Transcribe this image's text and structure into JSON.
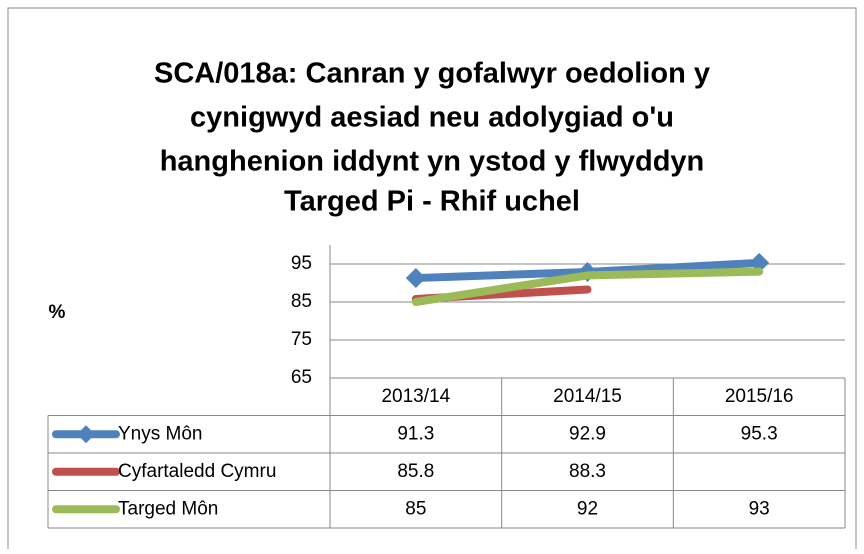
{
  "chart_data": {
    "type": "line",
    "title": [
      "SCA/018a: Canran y gofalwyr oedolion y",
      "cynigwyd aesiad neu adolygiad o'u",
      "hanghenion iddynt yn ystod y flwyddyn"
    ],
    "subtitle": "Targed Pi - Rhif uchel",
    "y_label": "%",
    "categories": [
      "2013/14",
      "2014/15",
      "2015/16"
    ],
    "series": [
      {
        "name": "Ynys Môn",
        "color": "#4f81bd",
        "marker": "diamond",
        "values": [
          91.3,
          92.9,
          95.3
        ]
      },
      {
        "name": "Cyfartaledd Cymru",
        "color": "#c0504d",
        "values": [
          85.8,
          88.3,
          null
        ]
      },
      {
        "name": "Targed Môn",
        "color": "#9bbb59",
        "values": [
          85,
          92,
          93
        ]
      }
    ],
    "ylim": [
      65,
      100
    ],
    "yticks": [
      65,
      75,
      85,
      95
    ],
    "grid": true,
    "data_table": true
  }
}
